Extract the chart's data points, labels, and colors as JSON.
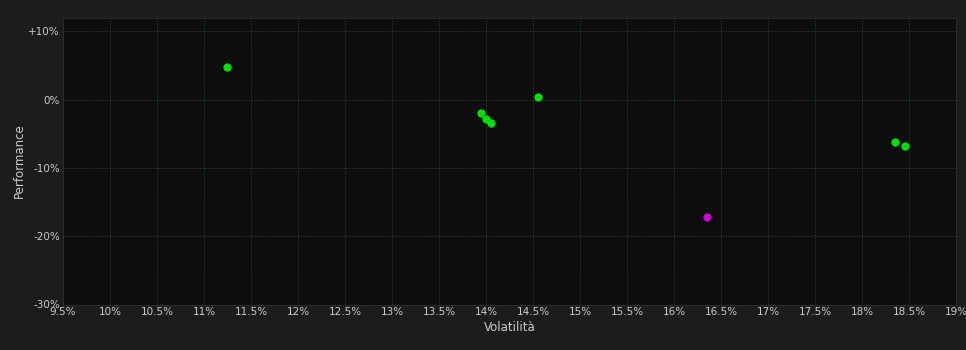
{
  "background_color": "#1c1c1c",
  "plot_bg_color": "#0d0d0d",
  "grid_color": "#2e4a2e",
  "text_color": "#cccccc",
  "xlabel": "Volatilità",
  "ylabel": "Performance",
  "xlim": [
    0.095,
    0.19
  ],
  "ylim": [
    -0.3,
    0.12
  ],
  "xticks": [
    0.095,
    0.1,
    0.105,
    0.11,
    0.115,
    0.12,
    0.125,
    0.13,
    0.135,
    0.14,
    0.145,
    0.15,
    0.155,
    0.16,
    0.165,
    0.17,
    0.175,
    0.18,
    0.185,
    0.19
  ],
  "yticks": [
    0.1,
    0.0,
    -0.1,
    -0.2,
    -0.3
  ],
  "ytick_labels": [
    "+10%",
    "0%",
    "-10%",
    "-20%",
    "-30%"
  ],
  "xtick_labels": [
    "9.5%",
    "10%",
    "10.5%",
    "11%",
    "11.5%",
    "12%",
    "12.5%",
    "13%",
    "13.5%",
    "14%",
    "14.5%",
    "15%",
    "15.5%",
    "16%",
    "16.5%",
    "17%",
    "17.5%",
    "18%",
    "18.5%",
    "19%"
  ],
  "points_green": [
    [
      0.1125,
      0.048
    ],
    [
      0.1395,
      -0.02
    ],
    [
      0.14,
      -0.028
    ],
    [
      0.1405,
      -0.034
    ],
    [
      0.1455,
      0.003
    ],
    [
      0.1835,
      -0.062
    ],
    [
      0.1845,
      -0.068
    ]
  ],
  "points_magenta": [
    [
      0.1635,
      -0.172
    ]
  ],
  "marker_size": 36,
  "font_size_ticks": 7.5,
  "font_size_axis": 8.5
}
